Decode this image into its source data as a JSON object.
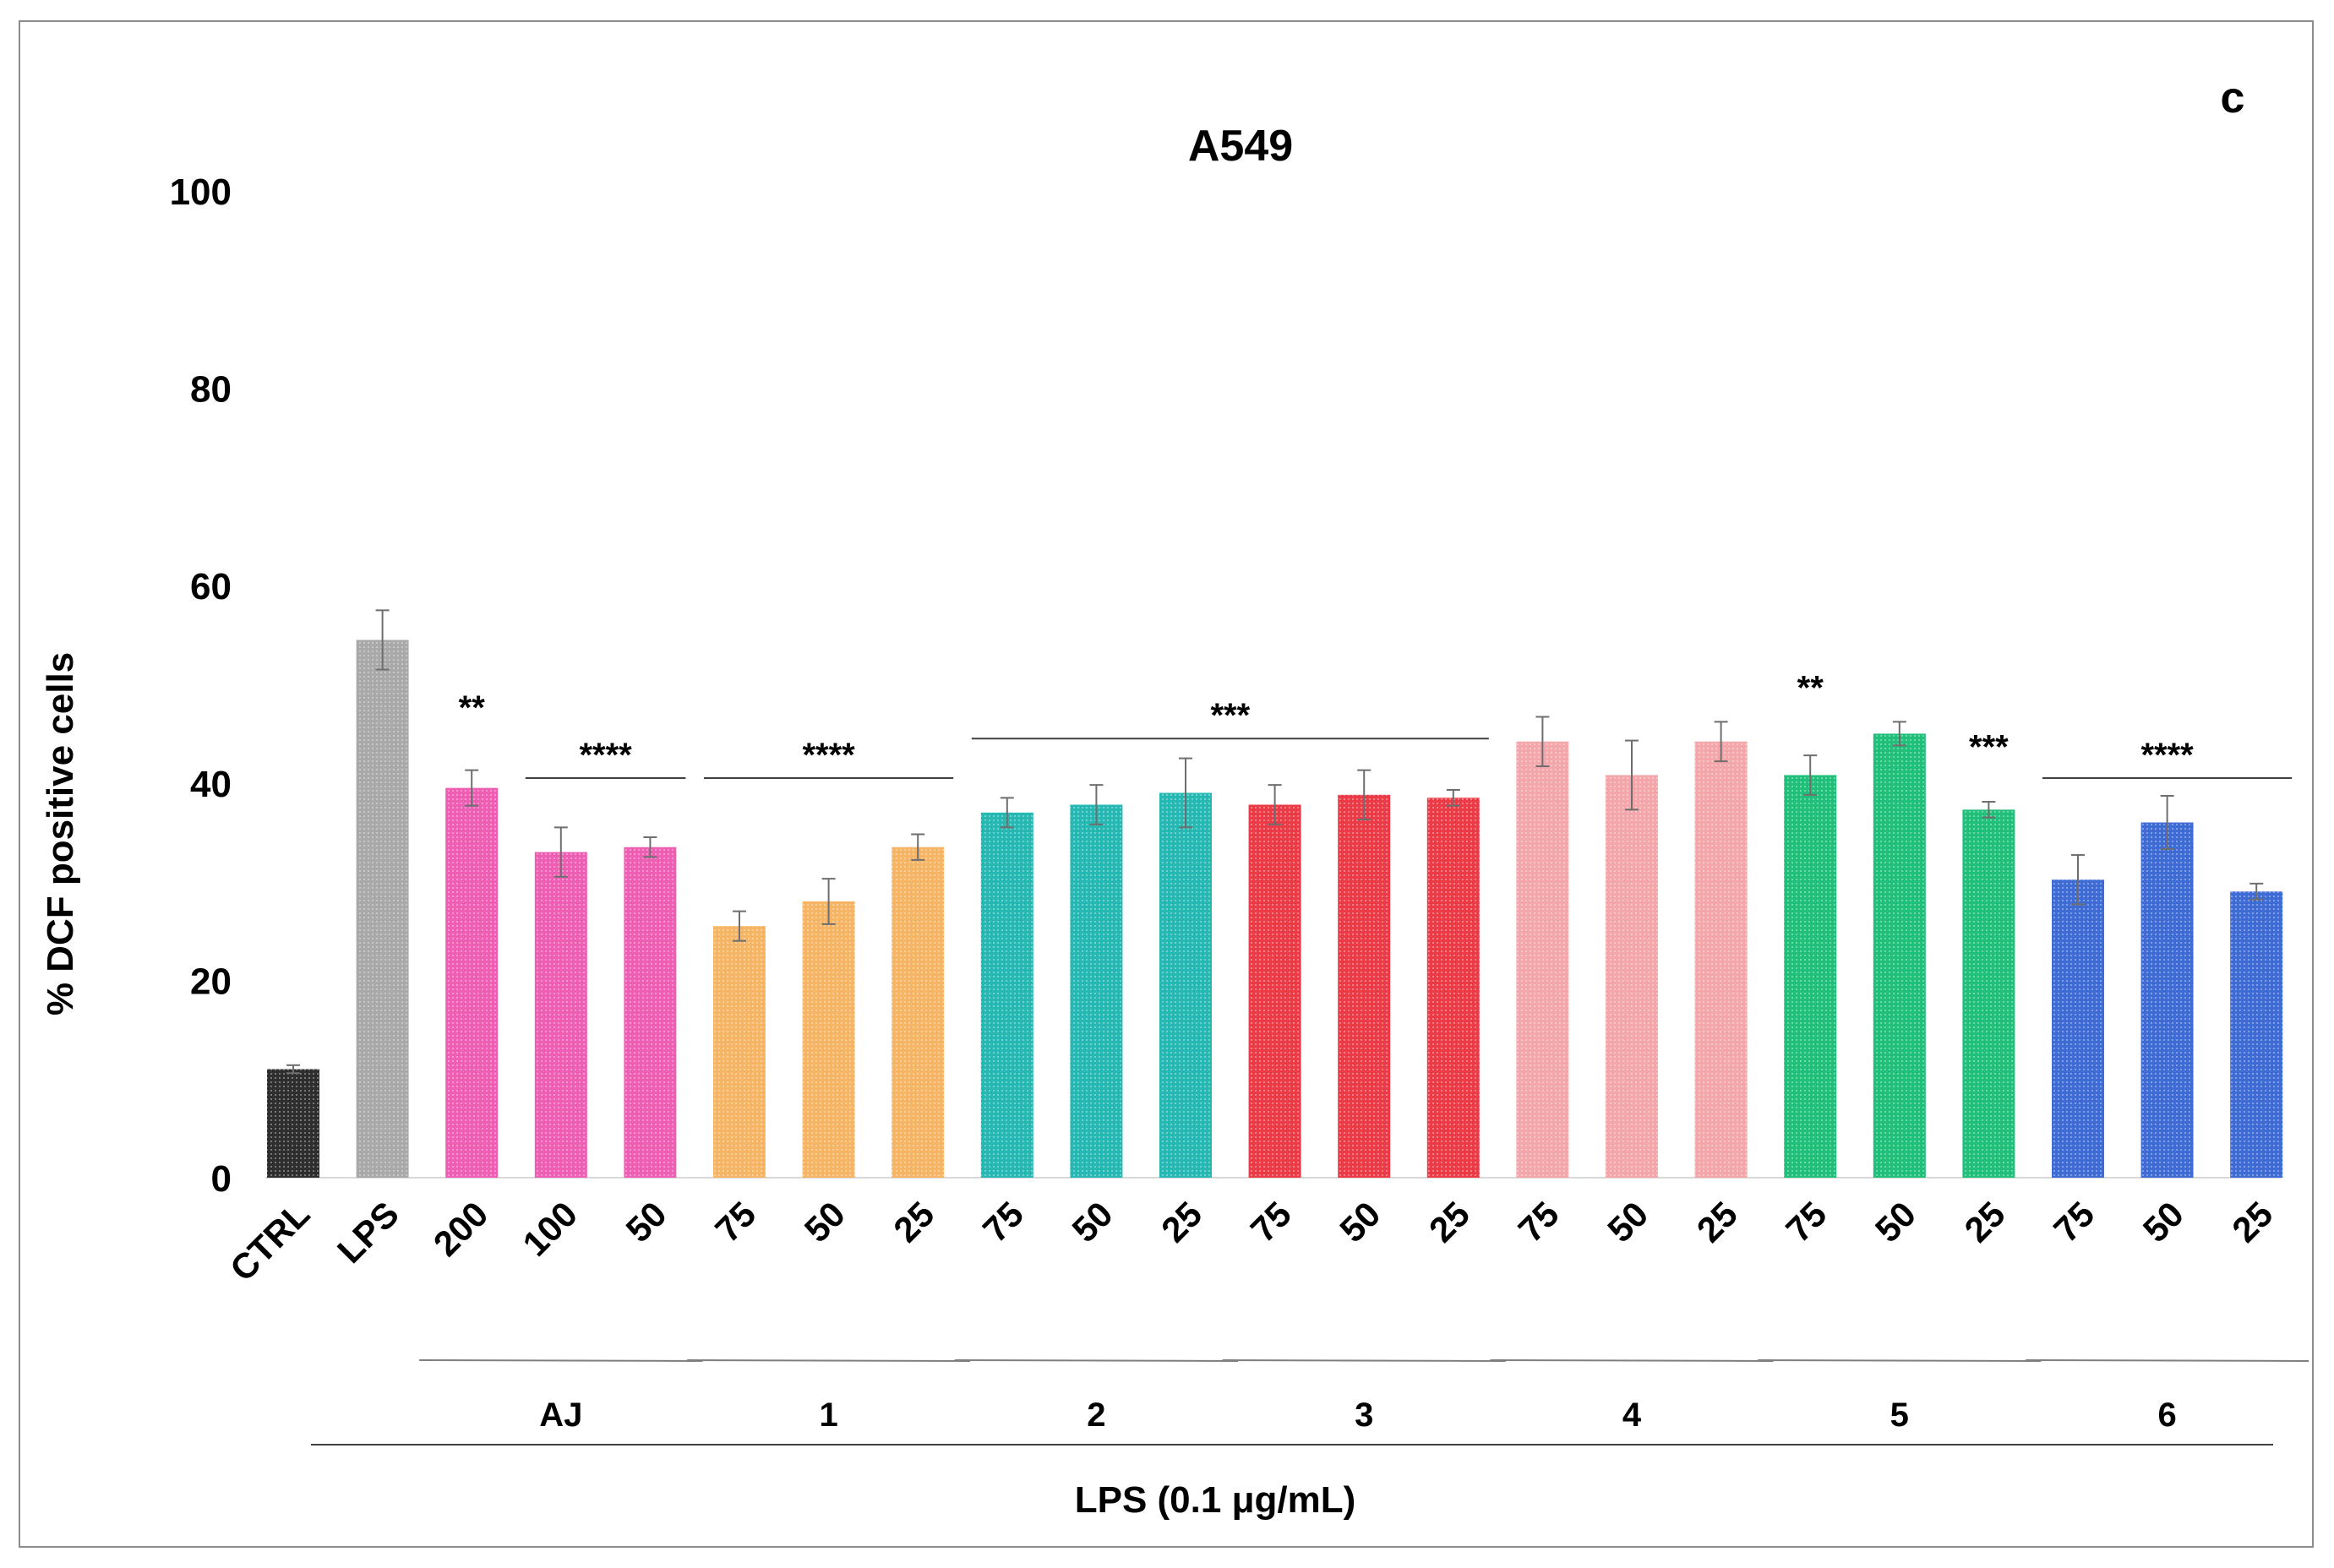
{
  "chart_data": {
    "type": "bar",
    "title": "A549",
    "panel_label": "c",
    "ylabel": "% DCF positive cells",
    "xlabel": "LPS (0.1 μg/mL)",
    "ylim": [
      0,
      100
    ],
    "yticks": [
      "0",
      "20",
      "40",
      "60",
      "80",
      "100"
    ],
    "categories": [
      "CTRL",
      "LPS",
      "200",
      "100",
      "50",
      "75",
      "50",
      "25",
      "75",
      "50",
      "25",
      "75",
      "50",
      "25",
      "75",
      "50",
      "25",
      "75",
      "50",
      "25",
      "75",
      "50",
      "25"
    ],
    "values": [
      11,
      54.5,
      39.5,
      33,
      33.5,
      25.5,
      28,
      33.5,
      37,
      37.8,
      39,
      37.8,
      38.8,
      38.5,
      44.2,
      40.8,
      44.2,
      40.8,
      45,
      37.3,
      30.2,
      36,
      29
    ],
    "errors": [
      0.4,
      3,
      1.8,
      2.5,
      1,
      1.5,
      2.3,
      1.3,
      1.5,
      2,
      3.5,
      2,
      2.5,
      0.8,
      2.5,
      3.5,
      2,
      2,
      1.2,
      0.8,
      2.5,
      2.7,
      0.8
    ],
    "bar_colors": [
      "#2e2e2e",
      "#a9a9a9",
      "#ee5fb4",
      "#ee5fb4",
      "#ee5fb4",
      "#f6b565",
      "#f6b565",
      "#f6b565",
      "#26b8b2",
      "#26b8b2",
      "#26b8b2",
      "#ea3b46",
      "#ea3b46",
      "#ea3b46",
      "#f3a7aa",
      "#f3a7aa",
      "#f3a7aa",
      "#21c07a",
      "#21c07a",
      "#21c07a",
      "#3f6bd5",
      "#3f6bd5",
      "#3f6bd5"
    ],
    "groups": [
      {
        "label": "AJ",
        "from": 2,
        "to": 4
      },
      {
        "label": "1",
        "from": 5,
        "to": 7
      },
      {
        "label": "2",
        "from": 8,
        "to": 10
      },
      {
        "label": "3",
        "from": 11,
        "to": 13
      },
      {
        "label": "4",
        "from": 14,
        "to": 16
      },
      {
        "label": "5",
        "from": 17,
        "to": 19
      },
      {
        "label": "6",
        "from": 20,
        "to": 22
      }
    ],
    "significance": [
      {
        "label": "**",
        "from": 2,
        "to": 2,
        "line": false,
        "y": 46.5
      },
      {
        "label": "****",
        "from": 3,
        "to": 4,
        "line": true,
        "y": 40.5
      },
      {
        "label": "****",
        "from": 5,
        "to": 7,
        "line": true,
        "y": 40.5
      },
      {
        "label": "***",
        "from": 8,
        "to": 13,
        "line": true,
        "y": 44.5
      },
      {
        "label": "**",
        "from": 17,
        "to": 17,
        "line": false,
        "y": 48.5
      },
      {
        "label": "***",
        "from": 19,
        "to": 19,
        "line": false,
        "y": 42.5
      },
      {
        "label": "****",
        "from": 20,
        "to": 22,
        "line": true,
        "y": 40.5
      }
    ]
  }
}
